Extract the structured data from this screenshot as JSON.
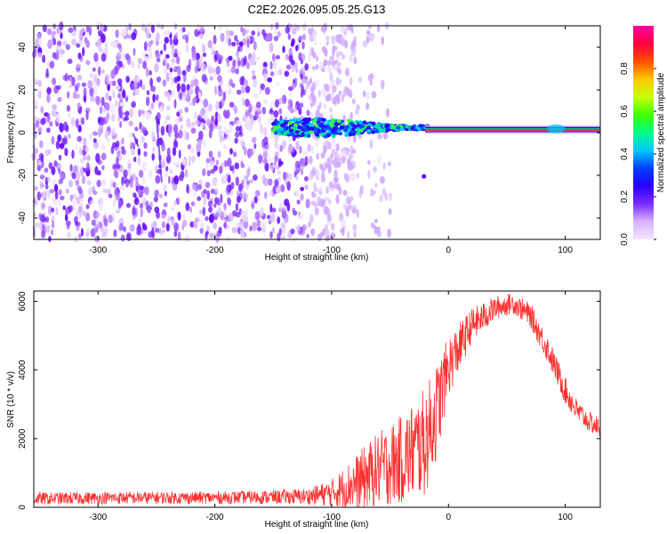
{
  "chart_data": [
    {
      "type": "heatmap",
      "title": "C2E2.2026.095.05.25.G13",
      "xlabel": "Height of straight line (km)",
      "ylabel": "Frequency (Hz)",
      "xlim": [
        -355,
        130
      ],
      "ylim": [
        -50,
        50
      ],
      "xticks": [
        -300,
        -200,
        -100,
        0,
        100
      ],
      "yticks": [
        -40,
        -20,
        0,
        20,
        40
      ],
      "colorbar": {
        "label": "Normalized spectral amplitude",
        "range": [
          0,
          1
        ],
        "ticks": [
          0.0,
          0.2,
          0.4,
          0.6,
          0.8
        ],
        "colors": [
          "#f2e6ff",
          "#d9b3ff",
          "#7a2bff",
          "#2a00ff",
          "#0040ff",
          "#00c8ff",
          "#00ff88",
          "#40ff00",
          "#c8ff00",
          "#ffc800",
          "#ff5000",
          "#ff0040",
          "#ff00a0"
        ]
      },
      "features": {
        "noise_region_x": [
          -355,
          -80
        ],
        "signal_onset_x": -150,
        "tone_stable_from_x": -20,
        "tone_frequency_hz": 1,
        "tone_color": "#ff2050",
        "band_color": "#00e0a0"
      }
    },
    {
      "type": "line",
      "xlabel": "Height of straight line (km)",
      "ylabel": "SNR (10 * v/v)",
      "xlim": [
        -355,
        130
      ],
      "ylim": [
        0,
        6300
      ],
      "xticks": [
        -300,
        -200,
        -100,
        0,
        100
      ],
      "yticks": [
        0,
        2000,
        4000,
        6000
      ],
      "series": [
        {
          "name": "SNR",
          "color": "#ff3030",
          "x": [
            -355,
            -300,
            -250,
            -200,
            -150,
            -120,
            -100,
            -80,
            -60,
            -40,
            -20,
            -10,
            0,
            20,
            40,
            55,
            70,
            85,
            100,
            110,
            120,
            130
          ],
          "y": [
            250,
            270,
            280,
            280,
            300,
            320,
            420,
            700,
            1100,
            1400,
            1900,
            2800,
            4100,
            5300,
            5800,
            5950,
            5600,
            4600,
            3400,
            2800,
            2500,
            2300
          ],
          "noise_amplitude": [
            180,
            180,
            180,
            180,
            200,
            240,
            400,
            800,
            1100,
            1300,
            1600,
            1400,
            900,
            500,
            350,
            300,
            350,
            400,
            400,
            350,
            300,
            300
          ]
        }
      ]
    }
  ]
}
